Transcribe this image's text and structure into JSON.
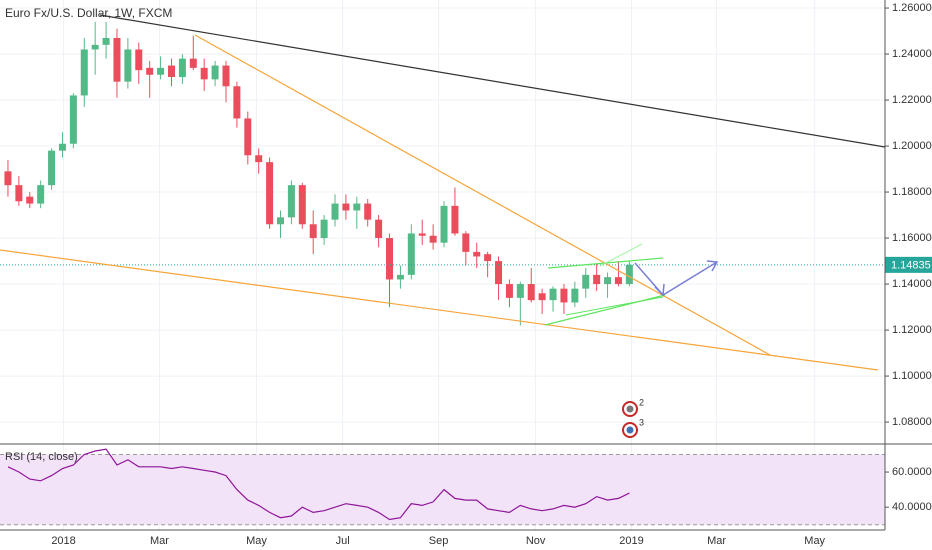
{
  "chart_data": [
    {
      "type": "candlestick",
      "title": "Euro Fx/U.S. Dollar, 1W, FXCM",
      "open": [
        1.189,
        1.183,
        1.178,
        1.175,
        1.183,
        1.198,
        1.201,
        1.222,
        1.242,
        1.244,
        1.247,
        1.228,
        1.242,
        1.234,
        1.231,
        1.235,
        1.23,
        1.238,
        1.234,
        1.229,
        1.235,
        1.226,
        1.212,
        1.196,
        1.193,
        1.166,
        1.169,
        1.183,
        1.166,
        1.16,
        1.168,
        1.175,
        1.172,
        1.175,
        1.168,
        1.16,
        1.142,
        1.144,
        1.162,
        1.161,
        1.158,
        1.174,
        1.162,
        1.154,
        1.153,
        1.15,
        1.14,
        1.134,
        1.14,
        1.136,
        1.133,
        1.138,
        1.132,
        1.138,
        1.144,
        1.14,
        1.143,
        1.14
      ],
      "high": [
        1.194,
        1.187,
        1.18,
        1.185,
        1.199,
        1.206,
        1.223,
        1.247,
        1.254,
        1.254,
        1.251,
        1.247,
        1.245,
        1.237,
        1.239,
        1.238,
        1.24,
        1.248,
        1.238,
        1.237,
        1.237,
        1.228,
        1.215,
        1.199,
        1.195,
        1.172,
        1.185,
        1.184,
        1.172,
        1.17,
        1.179,
        1.179,
        1.178,
        1.177,
        1.17,
        1.162,
        1.148,
        1.166,
        1.168,
        1.166,
        1.176,
        1.182,
        1.163,
        1.158,
        1.154,
        1.152,
        1.142,
        1.141,
        1.147,
        1.138,
        1.139,
        1.14,
        1.141,
        1.147,
        1.149,
        1.145,
        1.15,
        1.15
      ],
      "low": [
        1.178,
        1.174,
        1.173,
        1.173,
        1.181,
        1.195,
        1.199,
        1.217,
        1.231,
        1.238,
        1.221,
        1.225,
        1.227,
        1.221,
        1.229,
        1.226,
        1.227,
        1.233,
        1.224,
        1.226,
        1.219,
        1.208,
        1.192,
        1.188,
        1.164,
        1.16,
        1.166,
        1.164,
        1.153,
        1.157,
        1.165,
        1.168,
        1.164,
        1.165,
        1.156,
        1.13,
        1.138,
        1.142,
        1.157,
        1.155,
        1.156,
        1.161,
        1.148,
        1.147,
        1.143,
        1.133,
        1.13,
        1.122,
        1.132,
        1.127,
        1.128,
        1.127,
        1.13,
        1.134,
        1.137,
        1.134,
        1.139,
        1.139
      ],
      "close": [
        1.183,
        1.176,
        1.175,
        1.183,
        1.198,
        1.201,
        1.222,
        1.242,
        1.244,
        1.247,
        1.228,
        1.242,
        1.233,
        1.231,
        1.234,
        1.23,
        1.238,
        1.234,
        1.229,
        1.235,
        1.226,
        1.212,
        1.196,
        1.193,
        1.166,
        1.169,
        1.183,
        1.166,
        1.16,
        1.168,
        1.175,
        1.172,
        1.175,
        1.168,
        1.16,
        1.142,
        1.144,
        1.162,
        1.161,
        1.158,
        1.174,
        1.162,
        1.154,
        1.152,
        1.15,
        1.14,
        1.134,
        1.14,
        1.133,
        1.133,
        1.138,
        1.132,
        1.138,
        1.144,
        1.14,
        1.143,
        1.14,
        1.14835
      ],
      "up_color": "#53b987",
      "down_color": "#eb4d5c",
      "xlim": [
        -0.73,
        80.45
      ],
      "xticks": [
        {
          "value": 5.1,
          "label": "2018"
        },
        {
          "value": 13.9,
          "label": "Mar"
        },
        {
          "value": 22.8,
          "label": "May"
        },
        {
          "value": 30.7,
          "label": "Jul"
        },
        {
          "value": 39.5,
          "label": "Sep"
        },
        {
          "value": 48.4,
          "label": "Nov"
        },
        {
          "value": 57.2,
          "label": "2019"
        },
        {
          "value": 65,
          "label": "Mar"
        },
        {
          "value": 74,
          "label": "May"
        }
      ],
      "ylim": [
        1.0709,
        1.2635
      ],
      "yticks": [
        {
          "value": 1.26,
          "label": "1.26000"
        },
        {
          "value": 1.24,
          "label": "1.24000"
        },
        {
          "value": 1.22,
          "label": "1.22000"
        },
        {
          "value": 1.2,
          "label": "1.20000"
        },
        {
          "value": 1.18,
          "label": "1.18000"
        },
        {
          "value": 1.16,
          "label": "1.16000"
        },
        {
          "value": 1.14,
          "label": "1.14000"
        },
        {
          "value": 1.12,
          "label": "1.12000"
        },
        {
          "value": 1.1,
          "label": "1.10000"
        },
        {
          "value": 1.08,
          "label": "1.08000"
        }
      ],
      "last_price": 1.14835,
      "event_badges": [
        "2",
        "3"
      ],
      "grid": true
    },
    {
      "type": "line",
      "title": "RSI (14, close)",
      "color": "#8e1599",
      "values": [
        63,
        60,
        56,
        55,
        58,
        62,
        64,
        70,
        72,
        73,
        64,
        67,
        63,
        63,
        63,
        62,
        63,
        62,
        61,
        60,
        58,
        50,
        44,
        41,
        37,
        34,
        35,
        40,
        37,
        38,
        40,
        42,
        41,
        40,
        37,
        33,
        34,
        42,
        41,
        43,
        50,
        45,
        44,
        44,
        39,
        38,
        37,
        41,
        39,
        38,
        39,
        41,
        40,
        42,
        46,
        44,
        45,
        48
      ],
      "ylim": [
        27,
        75.4
      ],
      "yticks": [
        {
          "value": 60,
          "label": "60.0000"
        },
        {
          "value": 40,
          "label": "40.0000"
        }
      ],
      "levels": [
        30,
        70
      ],
      "grid": true
    }
  ]
}
